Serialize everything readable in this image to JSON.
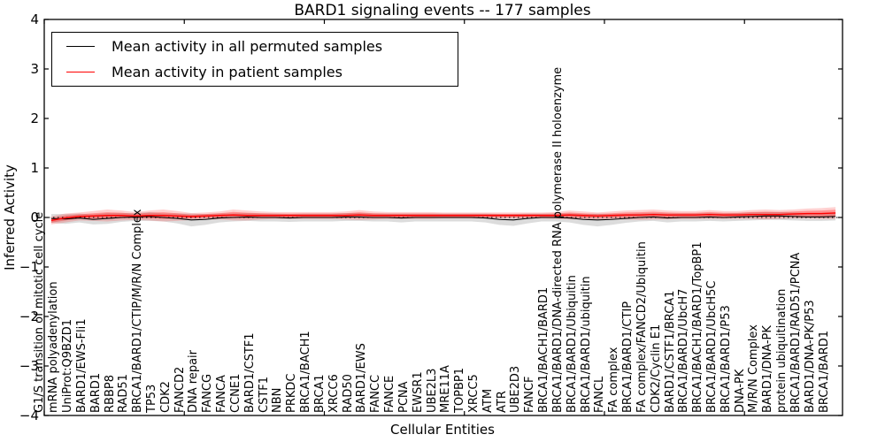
{
  "figure": {
    "title": "BARD1 signaling events -- 177 samples",
    "xlabel": "Cellular Entities",
    "ylabel": "Inferred Activity",
    "background": "#ffffff"
  },
  "legend": {
    "entries": [
      {
        "label": "Mean activity in all permuted samples",
        "color": "#000000"
      },
      {
        "label": "Mean activity in patient samples",
        "color": "#ff0000"
      }
    ]
  },
  "chart_data": {
    "type": "line",
    "title": "BARD1 signaling events -- 177 samples",
    "xlabel": "Cellular Entities",
    "ylabel": "Inferred Activity",
    "ylim": [
      -4,
      4
    ],
    "ytick_labels": [
      "4",
      "3",
      "2",
      "1",
      "0",
      "−1",
      "−2",
      "−3",
      "−4"
    ],
    "xticks": [
      0,
      10,
      20,
      30,
      40,
      50
    ],
    "grid": false,
    "legend_position": "upper left",
    "zero_line": true,
    "categories": [
      "G1/S transition of mitotic cell cycle",
      "mRNA polyadenylation",
      "UniProt:Q9BZD1",
      "BARD1/EWS-Fli1",
      "BARD1",
      "RBBP8",
      "RAD51",
      "BRCA1/BARD1/CTIP/M/R/N Complex",
      "TP53",
      "CDK2",
      "FANCD2",
      "DNA repair",
      "FANCG",
      "FANCA",
      "CCNE1",
      "BARD1/CSTF1",
      "CSTF1",
      "NBN",
      "PRKDC",
      "BRCA1/BACH1",
      "BRCA1",
      "XRCC6",
      "RAD50",
      "BARD1/EWS",
      "FANCC",
      "FANCE",
      "PCNA",
      "EWSR1",
      "UBE2L3",
      "MRE11A",
      "TOPBP1",
      "XRCC5",
      "ATM",
      "ATR",
      "UBE2D3",
      "FANCF",
      "BRCA1/BACH1/BARD1",
      "BRCA1/BARD1/DNA-directed RNA polymerase II holoenzyme",
      "BRCA1/BARD1/Ubiquitin",
      "BRCA1/BARD1/ubiquitin",
      "FANCL",
      "FA complex",
      "BRCA1/BARD1/CTIP",
      "FA complex/FANCD2/Ubiquitin",
      "CDK2/Cyclin E1",
      "BARD1/CSTF1/BRCA1",
      "BRCA1/BARD1/UbcH7",
      "BRCA1/BACH1/BARD1/TopBP1",
      "BRCA1/BARD1/UbcH5C",
      "BRCA1/BARD1/P53",
      "DNA-PK",
      "M/R/N Complex",
      "BARD1/DNA-PK",
      "protein ubiquitination",
      "BRCA1/BARD1/RAD51/PCNA",
      "BARD1/DNA-PK/P53",
      "BRCA1/BARD1"
    ],
    "series": [
      {
        "name": "Mean activity in all permuted samples",
        "color": "#000000",
        "band_color": "#dcdcdc",
        "values": [
          -0.02,
          -0.03,
          -0.01,
          -0.04,
          -0.02,
          0,
          0.01,
          0.02,
          0,
          -0.02,
          -0.05,
          -0.04,
          -0.01,
          0,
          0.01,
          0,
          0,
          -0.01,
          0,
          0,
          0,
          0.01,
          0.01,
          0,
          0,
          -0.01,
          0,
          0,
          0,
          0,
          0,
          -0.01,
          -0.04,
          -0.05,
          -0.02,
          0,
          0,
          -0.01,
          -0.04,
          -0.05,
          -0.04,
          -0.02,
          0,
          0.01,
          -0.01,
          0,
          0,
          0.01,
          0,
          0.01,
          0.02,
          0.03,
          0.03,
          0.02,
          0.01,
          0.01,
          0.02
        ],
        "band": [
          0.09,
          0.1,
          0.09,
          0.1,
          0.11,
          0.09,
          0.08,
          0.09,
          0.08,
          0.1,
          0.13,
          0.11,
          0.09,
          0.08,
          0.08,
          0.08,
          0.08,
          0.08,
          0.08,
          0.08,
          0.08,
          0.08,
          0.08,
          0.08,
          0.08,
          0.09,
          0.08,
          0.08,
          0.08,
          0.08,
          0.08,
          0.09,
          0.11,
          0.12,
          0.1,
          0.08,
          0.08,
          0.09,
          0.11,
          0.13,
          0.11,
          0.09,
          0.08,
          0.08,
          0.09,
          0.08,
          0.08,
          0.08,
          0.08,
          0.08,
          0.08,
          0.08,
          0.08,
          0.08,
          0.08,
          0.08,
          0.08
        ]
      },
      {
        "name": "Mean activity in patient samples",
        "color": "#ff0000",
        "band_color": "#ff0000",
        "values": [
          -0.06,
          -0.01,
          0.02,
          0.03,
          0.04,
          0.04,
          0.03,
          0.04,
          0.04,
          0.03,
          0.02,
          0.03,
          0.04,
          0.05,
          0.04,
          0.04,
          0.04,
          0.04,
          0.04,
          0.04,
          0.04,
          0.04,
          0.05,
          0.04,
          0.04,
          0.04,
          0.04,
          0.04,
          0.04,
          0.04,
          0.04,
          0.04,
          0.04,
          0.04,
          0.04,
          0.04,
          0.04,
          0.05,
          0.04,
          0.03,
          0.04,
          0.05,
          0.05,
          0.06,
          0.05,
          0.05,
          0.05,
          0.06,
          0.05,
          0.05,
          0.06,
          0.06,
          0.06,
          0.07,
          0.08,
          0.08,
          0.09
        ],
        "band": [
          0.08,
          0.09,
          0.08,
          0.1,
          0.12,
          0.1,
          0.08,
          0.1,
          0.12,
          0.1,
          0.07,
          0.07,
          0.08,
          0.11,
          0.1,
          0.08,
          0.07,
          0.07,
          0.07,
          0.07,
          0.07,
          0.08,
          0.1,
          0.08,
          0.07,
          0.07,
          0.07,
          0.07,
          0.06,
          0.06,
          0.06,
          0.06,
          0.06,
          0.06,
          0.06,
          0.06,
          0.07,
          0.09,
          0.08,
          0.07,
          0.08,
          0.09,
          0.1,
          0.1,
          0.09,
          0.08,
          0.08,
          0.09,
          0.08,
          0.08,
          0.09,
          0.1,
          0.09,
          0.09,
          0.1,
          0.11,
          0.12
        ]
      }
    ]
  }
}
